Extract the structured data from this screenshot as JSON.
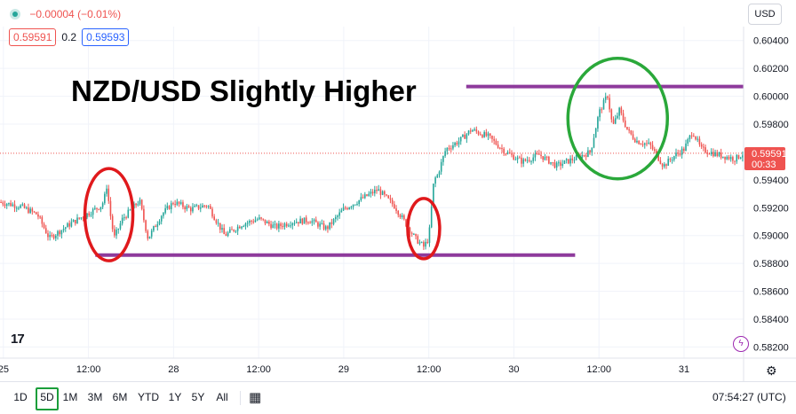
{
  "legend": {
    "change": "−0.00004 (−0.01%)"
  },
  "quote": {
    "bid": "0.59591",
    "spread": "0.2",
    "ask": "0.59593"
  },
  "currency": "USD",
  "current_price": {
    "value": "0.59591",
    "countdown": "00:33",
    "color": "#ef5350"
  },
  "toolbar": {
    "timeframes": [
      "1D",
      "5D",
      "1M",
      "3M",
      "6M",
      "YTD",
      "1Y",
      "5Y",
      "All"
    ],
    "active": "5D",
    "clock": "07:54:27 (UTC)"
  },
  "icons": {
    "settings": "gear-icon",
    "calendar": "calendar-range-icon",
    "logo": "tradingview-logo",
    "bolt": "lightning-icon",
    "status": "market-open-dot"
  },
  "colors": {
    "up": "#26a69a",
    "down": "#ef5350",
    "resistance_line": "#8e3a9c",
    "support_line": "#8e3a9c",
    "circle_red": "#e0191c",
    "circle_green": "#2aa83a"
  },
  "chart_data": {
    "type": "line",
    "title": "NZD/USD Slightly Higher",
    "ylim": [
      0.5812,
      0.605
    ],
    "y_ticks": [
      "0.60400",
      "0.60200",
      "0.60000",
      "0.59800",
      "0.59400",
      "0.59200",
      "0.59000",
      "0.58800",
      "0.58600",
      "0.58400",
      "0.58200"
    ],
    "x_ticks": [
      {
        "label": "25",
        "pos": 0.0
      },
      {
        "label": "12:00",
        "pos": 0.5
      },
      {
        "label": "28",
        "pos": 1.0
      },
      {
        "label": "12:00",
        "pos": 1.5
      },
      {
        "label": "29",
        "pos": 2.0
      },
      {
        "label": "12:00",
        "pos": 2.5
      },
      {
        "label": "30",
        "pos": 3.0
      },
      {
        "label": "12:00",
        "pos": 3.5
      },
      {
        "label": "31",
        "pos": 4.0
      }
    ],
    "xlim": [
      -0.02,
      4.35
    ],
    "series": [
      {
        "x": [
          -0.02,
          0.1,
          0.2,
          0.27,
          0.4,
          0.5,
          0.58,
          0.6,
          0.61,
          0.62,
          0.65,
          0.7,
          0.8,
          0.85,
          0.93,
          1.0,
          1.1,
          1.2,
          1.3,
          1.4,
          1.5,
          1.6,
          1.7,
          1.8,
          1.9,
          2.0,
          2.1,
          2.2,
          2.3,
          2.42,
          2.47,
          2.5,
          2.53,
          2.55,
          2.6,
          2.68,
          2.75,
          2.85,
          2.95,
          3.05,
          3.15,
          3.25,
          3.35,
          3.45,
          3.5,
          3.55,
          3.58,
          3.62,
          3.67,
          3.72,
          3.8,
          3.88,
          3.95,
          4.0,
          4.05,
          4.1,
          4.2,
          4.3,
          4.35
        ],
        "y": [
          0.5924,
          0.5921,
          0.5915,
          0.5898,
          0.5909,
          0.5916,
          0.5922,
          0.593,
          0.5938,
          0.5922,
          0.5898,
          0.5912,
          0.5925,
          0.5898,
          0.5915,
          0.5924,
          0.5919,
          0.5922,
          0.59,
          0.5908,
          0.5912,
          0.5906,
          0.591,
          0.5911,
          0.5905,
          0.5919,
          0.5926,
          0.5933,
          0.5921,
          0.5898,
          0.5892,
          0.5898,
          0.594,
          0.5943,
          0.5962,
          0.5968,
          0.5976,
          0.5971,
          0.596,
          0.5953,
          0.5958,
          0.595,
          0.5955,
          0.596,
          0.5988,
          0.6001,
          0.5978,
          0.599,
          0.5975,
          0.5968,
          0.5965,
          0.595,
          0.5958,
          0.5962,
          0.5975,
          0.5962,
          0.5958,
          0.5955,
          0.5959
        ]
      }
    ],
    "annotations": {
      "resistance_line": {
        "y": 0.6007,
        "x_from": 2.72,
        "x_to": 4.38
      },
      "support_line": {
        "y": 0.5886,
        "x_from": 0.54,
        "x_to": 3.36
      },
      "circles": [
        {
          "cx": 0.62,
          "cy": 0.5915,
          "color": "red"
        },
        {
          "cx": 2.47,
          "cy": 0.5905,
          "color": "red"
        },
        {
          "cx": 3.61,
          "cy": 0.5984,
          "color": "green"
        }
      ]
    }
  }
}
